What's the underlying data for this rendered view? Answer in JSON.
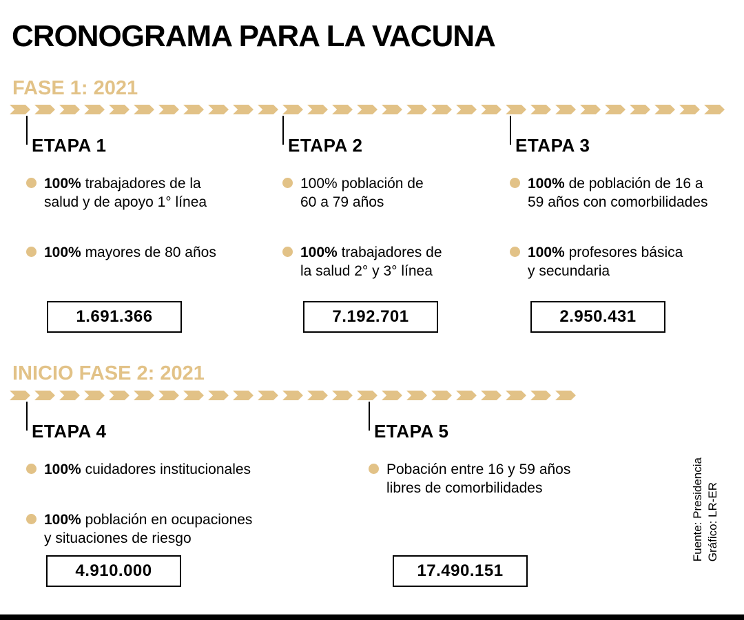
{
  "title": "CRONOGRAMA PARA LA VACUNA",
  "colors": {
    "accent": "#E2C287",
    "text": "#000000"
  },
  "source": {
    "line1": "Fuente: Presidencia",
    "line2": "Gráfico: LR-ER"
  },
  "phase1": {
    "label": "FASE 1: 2021",
    "stages": [
      {
        "name": "ETAPA 1",
        "items": [
          {
            "lead": "100%",
            "text": "trabajadores de la\nsalud y de apoyo 1° línea"
          },
          {
            "lead": "100%",
            "text": "mayores de 80 años"
          }
        ],
        "total": "1.691.366"
      },
      {
        "name": "ETAPA 2",
        "items": [
          {
            "lead": "100%",
            "text": "población de\n60 a 79 años"
          },
          {
            "lead": "100%",
            "text": "trabajadores de\nla salud 2° y 3° línea"
          }
        ],
        "total": "7.192.701"
      },
      {
        "name": "ETAPA 3",
        "items": [
          {
            "lead": "100%",
            "text": "de población de 16 a\n59 años con comorbilidades"
          },
          {
            "lead": "100%",
            "text": "profesores básica\ny secundaria"
          }
        ],
        "total": "2.950.431"
      }
    ]
  },
  "phase2": {
    "label": "INICIO FASE 2: 2021",
    "stages": [
      {
        "name": "ETAPA 4",
        "items": [
          {
            "lead": "100%",
            "text": "cuidadores institucionales"
          },
          {
            "lead": "100%",
            "text": "población en ocupaciones\ny situaciones de riesgo"
          }
        ],
        "total": "4.910.000"
      },
      {
        "name": "ETAPA 5",
        "items": [
          {
            "lead": "",
            "text": "Pobación entre 16 y 59 años\nlibres de comorbilidades"
          }
        ],
        "total": "17.490.151"
      }
    ]
  }
}
